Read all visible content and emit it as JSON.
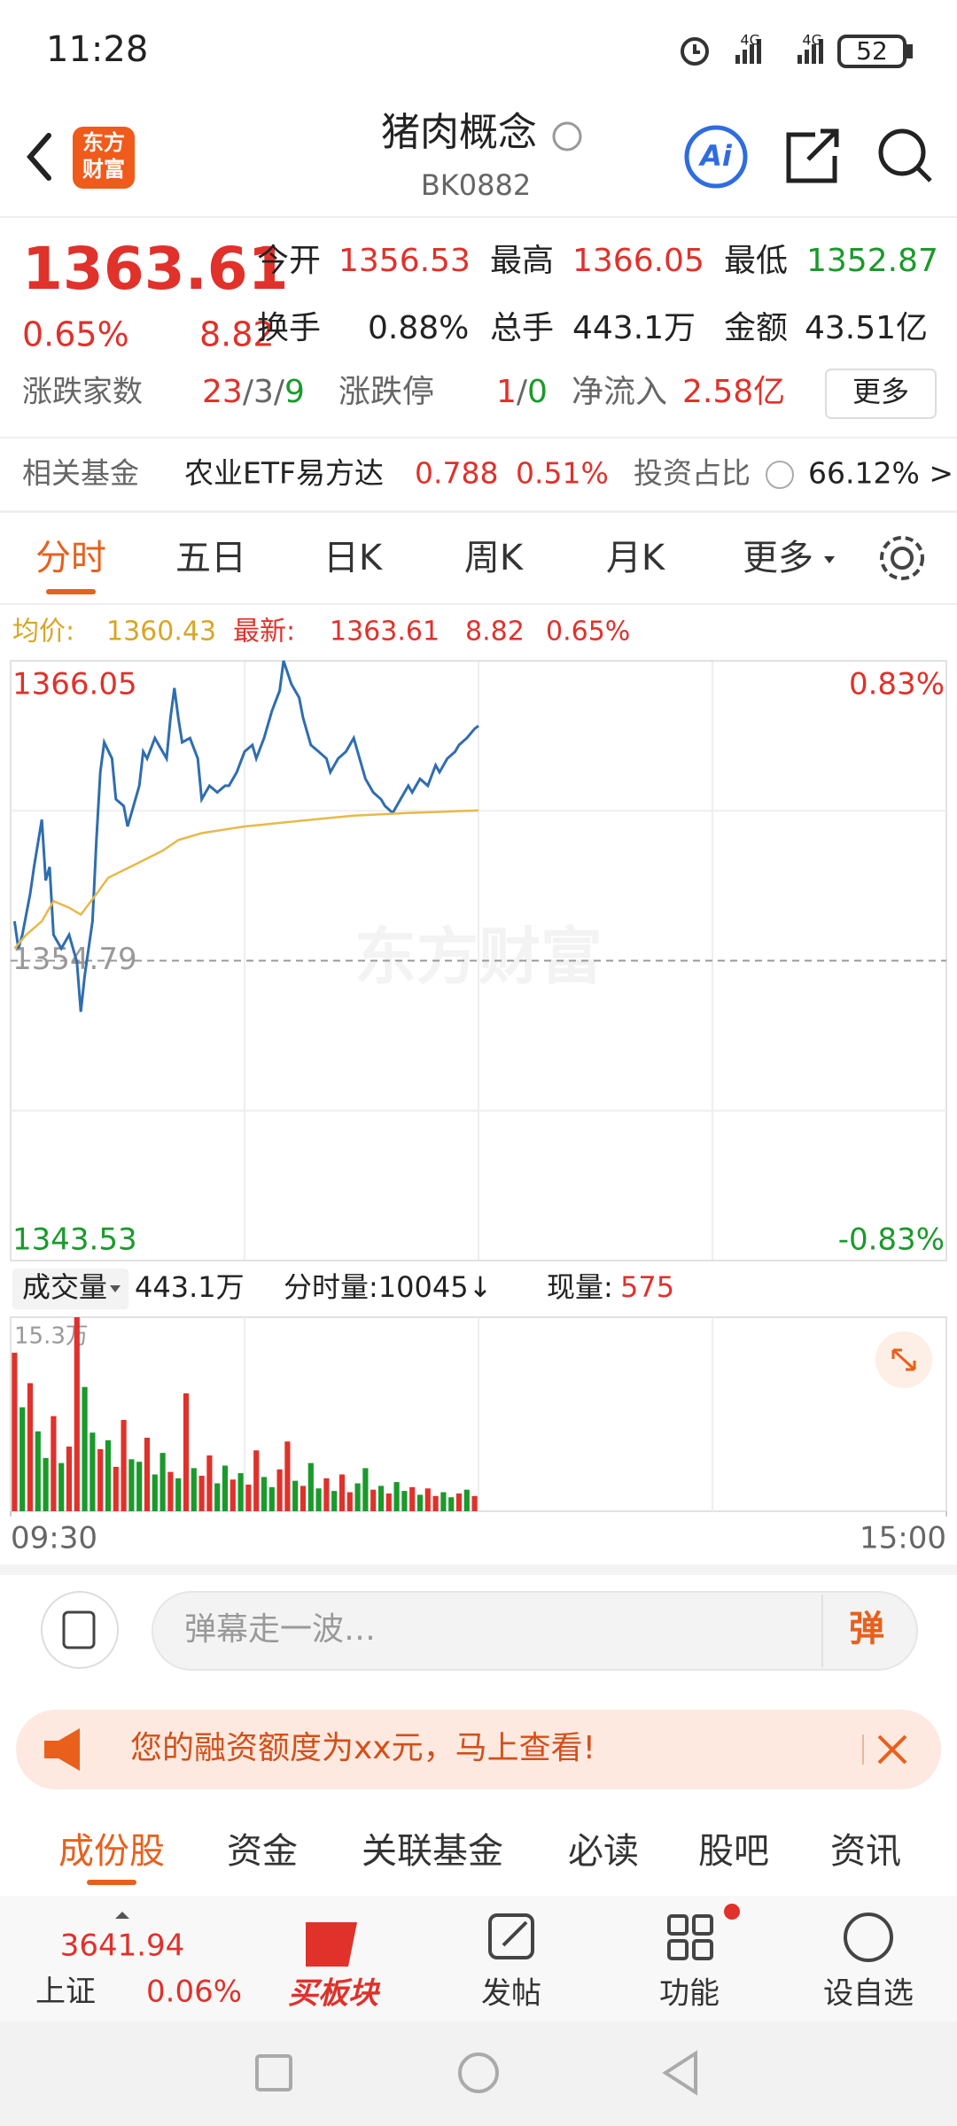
{
  "status_bar": {
    "time": "11:28",
    "network": "4G",
    "battery": "52"
  },
  "header": {
    "logo": [
      "东方",
      "财富"
    ],
    "title": "猪肉概念",
    "code": "BK0882",
    "ai": "Ai"
  },
  "quote": {
    "price": "1363.61",
    "change_pct": "0.65%",
    "change": "8.82",
    "open": {
      "label": "今开",
      "value": "1356.53"
    },
    "high": {
      "label": "最高",
      "value": "1366.05"
    },
    "low": {
      "label": "最低",
      "value": "1352.87"
    },
    "turnover_rate": {
      "label": "换手",
      "value": "0.88%"
    },
    "volume": {
      "label": "总手",
      "value": "443.1万"
    },
    "amount": {
      "label": "金额",
      "value": "43.51亿"
    },
    "breadth": {
      "label": "涨跌家数",
      "parts": [
        "23",
        "/3/",
        "9"
      ]
    },
    "limit": {
      "label": "涨跌停",
      "parts": [
        "1",
        "/",
        "0"
      ]
    },
    "net_inflow": {
      "label": "净流入",
      "value": "2.58亿"
    },
    "more": "更多"
  },
  "fund": {
    "label": "相关基金",
    "name": "农业ETF易方达",
    "price": "0.788",
    "change_pct": "0.51%",
    "ratio_label": "投资占比",
    "help": "?",
    "ratio": "66.12% >"
  },
  "tabs": {
    "items": [
      "分时",
      "五日",
      "日K",
      "周K",
      "月K",
      "更多"
    ],
    "active": 0
  },
  "legend": {
    "avg_label": "均价:",
    "avg": "1360.43",
    "last_label": "最新:",
    "last": "1363.61",
    "change": "8.82",
    "change_pct": "0.65%"
  },
  "watermark": "东方财富",
  "chart_data": [
    {
      "type": "line",
      "xlim": [
        0,
        240
      ],
      "ylim": [
        1343.53,
        1366.05
      ],
      "yticks": [
        1343.53,
        1354.79,
        1366.05
      ],
      "y2lim": [
        -0.83,
        0.83
      ],
      "y2ticks": [
        {
          "value": -0.83,
          "label": "-0.83%"
        },
        {
          "value": 0.83,
          "label": "0.83%"
        }
      ],
      "series": [
        {
          "color": "#2f6db0",
          "x": [
            1,
            2,
            3,
            5,
            6,
            8,
            9,
            10,
            11,
            13,
            15,
            16,
            17,
            18,
            19,
            21,
            22,
            23,
            24,
            26,
            27,
            29,
            30,
            31,
            33,
            34,
            35,
            37,
            38,
            40,
            41,
            42,
            43,
            44,
            46,
            48,
            49,
            51,
            53,
            55,
            56,
            58,
            60,
            62,
            63,
            65,
            67,
            69,
            70,
            72,
            74,
            75,
            77,
            79,
            81,
            82,
            84,
            86,
            88,
            89,
            91,
            93,
            95,
            96,
            98,
            100,
            102,
            103,
            105,
            107,
            109,
            110,
            112,
            114,
            115,
            117,
            119,
            120
          ],
          "values": [
            1356.27,
            1355.25,
            1355.76,
            1357.29,
            1358.31,
            1360.09,
            1357.8,
            1358.31,
            1355.76,
            1355.25,
            1355.76,
            1355.25,
            1354.74,
            1352.87,
            1354.23,
            1356.27,
            1359.32,
            1361.87,
            1362.99,
            1362.38,
            1360.85,
            1360.6,
            1359.83,
            1360.34,
            1361.36,
            1362.64,
            1362.38,
            1363.15,
            1362.89,
            1362.38,
            1363.91,
            1365.03,
            1363.91,
            1362.99,
            1363.15,
            1362.38,
            1360.85,
            1361.36,
            1361.11,
            1361.36,
            1361.36,
            1361.87,
            1362.64,
            1362.89,
            1362.38,
            1363.15,
            1364.16,
            1364.93,
            1366.05,
            1365.18,
            1364.67,
            1363.91,
            1362.89,
            1362.64,
            1362.38,
            1361.87,
            1362.38,
            1362.64,
            1363.15,
            1362.64,
            1361.62,
            1361.11,
            1360.85,
            1360.6,
            1360.34,
            1360.85,
            1361.36,
            1361.11,
            1361.62,
            1361.36,
            1362.13,
            1361.87,
            1362.38,
            1362.64,
            1362.89,
            1363.15,
            1363.5,
            1363.61
          ]
        },
        {
          "color": "#e8b84a",
          "x": [
            1,
            4,
            8,
            11,
            15,
            18,
            22,
            25,
            32,
            39,
            43,
            49,
            60,
            74,
            88,
            102,
            120
          ],
          "values": [
            1355.25,
            1355.76,
            1356.27,
            1357.03,
            1356.78,
            1356.52,
            1357.29,
            1357.9,
            1358.41,
            1358.92,
            1359.32,
            1359.58,
            1359.83,
            1360.04,
            1360.24,
            1360.34,
            1360.43
          ]
        }
      ]
    },
    {
      "type": "bar",
      "xlim": [
        0,
        240
      ],
      "xticks": [
        {
          "value": 0,
          "label": "09:30"
        },
        {
          "value": 240,
          "label": "15:00"
        }
      ],
      "ylim": [
        0,
        15.3
      ],
      "yticks": [
        {
          "value": 15.3,
          "label": "15.3万"
        }
      ],
      "x": [
        1,
        3,
        5,
        7,
        9,
        11,
        13,
        15,
        17,
        19,
        21,
        23,
        25,
        27,
        29,
        31,
        33,
        35,
        37,
        39,
        41,
        43,
        45,
        47,
        49,
        51,
        53,
        55,
        57,
        59,
        61,
        63,
        65,
        67,
        69,
        71,
        73,
        75,
        77,
        79,
        81,
        83,
        85,
        87,
        89,
        91,
        93,
        95,
        97,
        99,
        101,
        103,
        105,
        107,
        109,
        111,
        113,
        115,
        117,
        119
      ],
      "values": [
        12.5,
        8.2,
        10.1,
        6.3,
        4.2,
        7.5,
        3.8,
        5.1,
        15.3,
        9.8,
        6.2,
        4.9,
        5.6,
        3.5,
        7.2,
        4.1,
        3.9,
        5.8,
        2.9,
        4.6,
        3.1,
        2.6,
        9.3,
        3.4,
        2.8,
        4.4,
        2.2,
        3.6,
        2.5,
        3.0,
        2.1,
        4.8,
        2.7,
        1.9,
        3.3,
        5.5,
        2.4,
        2.0,
        3.8,
        1.8,
        2.6,
        1.6,
        2.9,
        1.5,
        2.2,
        3.4,
        1.7,
        2.0,
        1.4,
        2.3,
        1.6,
        1.9,
        1.3,
        1.8,
        1.2,
        1.5,
        1.1,
        1.4,
        1.7,
        1.2
      ],
      "colors": [
        "#e0312b",
        "#1a9a2b",
        "#e0312b",
        "#1a9a2b",
        "#1a9a2b",
        "#e0312b",
        "#1a9a2b",
        "#e0312b",
        "#e0312b",
        "#1a9a2b",
        "#1a9a2b",
        "#e0312b",
        "#1a9a2b",
        "#e0312b",
        "#e0312b",
        "#1a9a2b",
        "#1a9a2b",
        "#e0312b",
        "#1a9a2b",
        "#1a9a2b",
        "#e0312b",
        "#1a9a2b",
        "#e0312b",
        "#1a9a2b",
        "#e0312b",
        "#e0312b",
        "#1a9a2b",
        "#1a9a2b",
        "#e0312b",
        "#1a9a2b",
        "#e0312b",
        "#e0312b",
        "#1a9a2b",
        "#1a9a2b",
        "#e0312b",
        "#e0312b",
        "#1a9a2b",
        "#e0312b",
        "#1a9a2b",
        "#1a9a2b",
        "#e0312b",
        "#1a9a2b",
        "#e0312b",
        "#e0312b",
        "#1a9a2b",
        "#1a9a2b",
        "#e0312b",
        "#1a9a2b",
        "#e0312b",
        "#1a9a2b",
        "#1a9a2b",
        "#e0312b",
        "#1a9a2b",
        "#e0312b",
        "#e0312b",
        "#1a9a2b",
        "#1a9a2b",
        "#e0312b",
        "#1a9a2b",
        "#e0312b"
      ]
    }
  ],
  "volume_bar": {
    "selector": "成交量",
    "total": "443.1万",
    "minute": "分时量:10045↓",
    "current_label": "现量:",
    "current": "575"
  },
  "comment": {
    "placeholder": "弹幕走一波…",
    "button": "弹"
  },
  "banner": {
    "text": "您的融资额度为xx元，马上查看!"
  },
  "sub_tabs": {
    "items": [
      "成份股",
      "资金",
      "关联基金",
      "必读",
      "股吧",
      "资讯"
    ],
    "active": 0
  },
  "bottom_nav": {
    "index": {
      "value": "3641.94",
      "name": "上证",
      "change": "0.06%"
    },
    "items": [
      "买板块",
      "发帖",
      "功能",
      "设自选"
    ]
  }
}
